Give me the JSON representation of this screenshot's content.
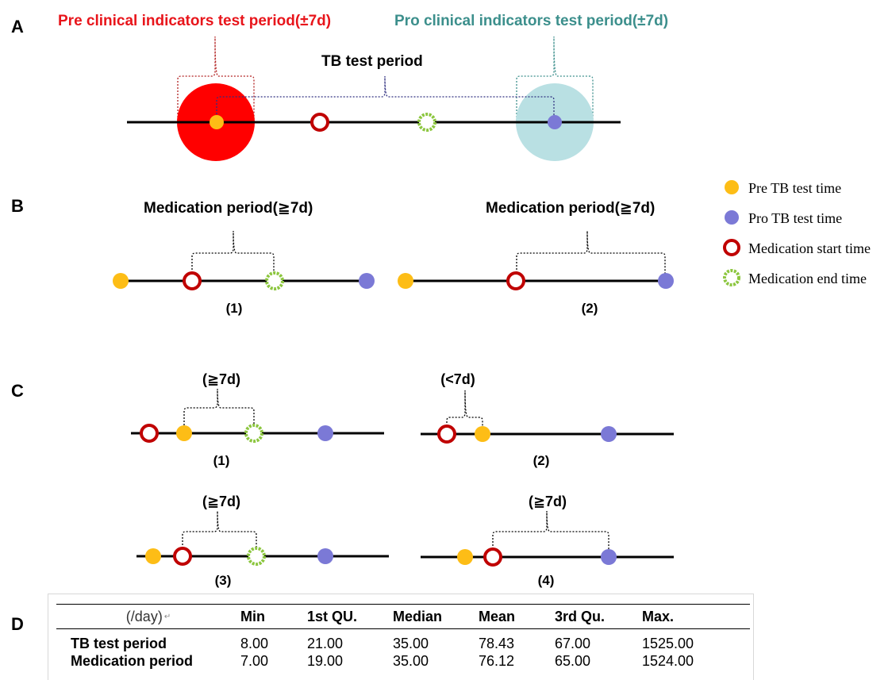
{
  "panels": {
    "A": "A",
    "B": "B",
    "C": "C",
    "D": "D"
  },
  "panel_a": {
    "pre_label": "Pre clinical indicators test period(±7d)",
    "pro_label": "Pro clinical indicators test period(±7d)",
    "tb_label": "TB test period"
  },
  "panel_b": {
    "left_label": "Medication period(≧7d)",
    "right_label": "Medication period(≧7d)",
    "case1": "(1)",
    "case2": "(2)"
  },
  "panel_c": {
    "label1": "(≧7d)",
    "label2": "(<7d)",
    "label3": "(≧7d)",
    "label4": "(≧7d)",
    "case1": "(1)",
    "case2": "(2)",
    "case3": "(3)",
    "case4": "(4)"
  },
  "legend": {
    "pre": "Pre TB test time",
    "pro": "Pro TB test time",
    "start": "Medication start time",
    "end": "Medication end time"
  },
  "colors": {
    "pre_tb": "#fdbd16",
    "pro_tb": "#7b79d6",
    "med_start": "#c00000",
    "med_end": "#8cc63f",
    "pre_period": "#ff0000",
    "pro_period": "#b9e0e3",
    "pre_title": "#e8151b",
    "pro_title": "#3c8f8c"
  },
  "table": {
    "unit": "(/day)",
    "headers": [
      "Min",
      "1st QU.",
      "Median",
      "Mean",
      "3rd Qu.",
      "Max."
    ],
    "rows": [
      {
        "label": "TB test period",
        "values": [
          "8.00",
          "21.00",
          "35.00",
          "78.43",
          "67.00",
          "1525.00"
        ]
      },
      {
        "label": "Medication period",
        "values": [
          "7.00",
          "19.00",
          "35.00",
          "76.12",
          "65.00",
          "1524.00"
        ]
      }
    ]
  }
}
